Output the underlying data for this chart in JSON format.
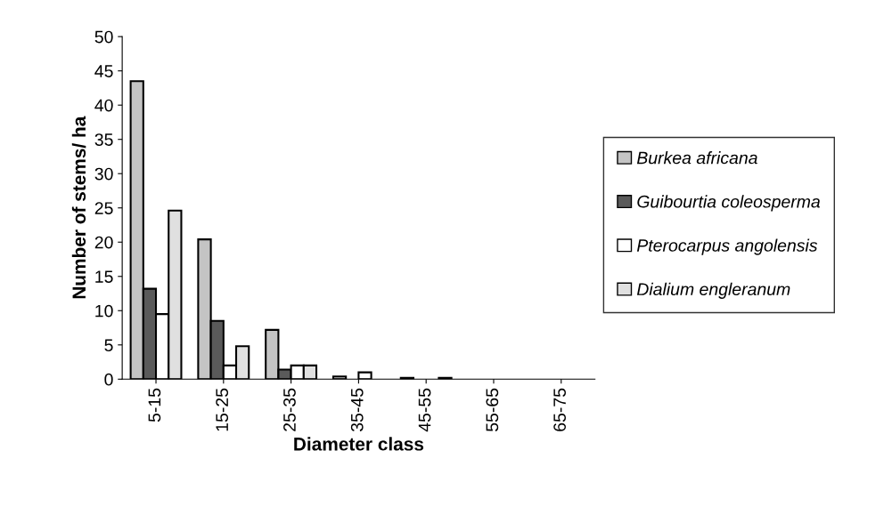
{
  "chart_data": {
    "type": "bar",
    "xlabel": "Diameter class",
    "ylabel": "Number of stems/ ha",
    "categories": [
      "5-15",
      "15-25",
      "25-35",
      "35-45",
      "45-55",
      "55-65",
      "65-75"
    ],
    "series": [
      {
        "name": "Burkea africana",
        "color": "#c4c4c4",
        "values": [
          43.5,
          20.4,
          7.2,
          0.4,
          0.2,
          0,
          0
        ]
      },
      {
        "name": "Guibourtia coleosperma",
        "color": "#5a5a5a",
        "values": [
          13.2,
          8.5,
          1.4,
          0,
          0,
          0,
          0
        ]
      },
      {
        "name": "Pterocarpus angolensis",
        "color": "#ffffff",
        "values": [
          9.5,
          2,
          2,
          1,
          0,
          0,
          0
        ]
      },
      {
        "name": "Dialium engleranum",
        "color": "#e0e0e0",
        "values": [
          24.6,
          4.8,
          2,
          0,
          0.2,
          0,
          0
        ]
      }
    ],
    "ylim": [
      0,
      50
    ],
    "yticks": [
      0,
      5,
      10,
      15,
      20,
      25,
      30,
      35,
      40,
      45,
      50
    ],
    "grid": false,
    "legend": "right"
  }
}
